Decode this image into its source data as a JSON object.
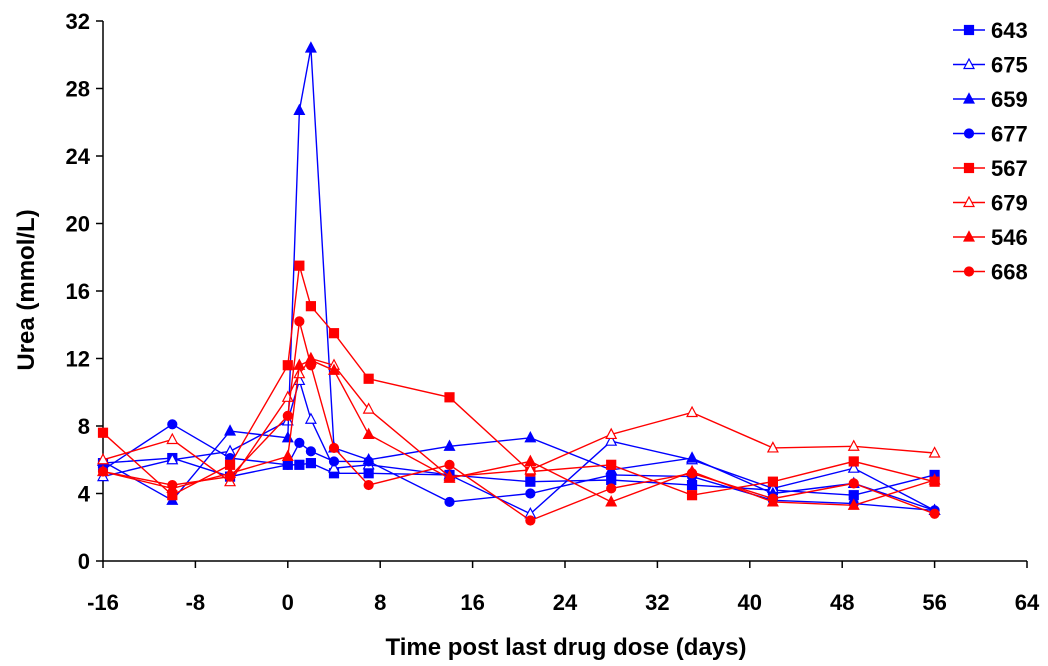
{
  "chart_data": {
    "type": "line",
    "title": "",
    "xlabel": "Time post last drug dose (days)",
    "ylabel": "Urea (mmol/L)",
    "xlim": [
      -16,
      64
    ],
    "ylim": [
      0,
      32
    ],
    "xticks": [
      -16,
      -8,
      0,
      8,
      16,
      24,
      32,
      40,
      48,
      56,
      64
    ],
    "yticks": [
      0,
      4,
      8,
      12,
      16,
      20,
      24,
      28,
      32
    ],
    "xtick_labels": [
      "-16",
      "-8",
      "0",
      "8",
      "16",
      "24",
      "32",
      "40",
      "48",
      "56",
      "64"
    ],
    "ytick_labels": [
      "0",
      "4",
      "8",
      "12",
      "16",
      "20",
      "24",
      "28",
      "32"
    ],
    "grid": false,
    "legend_position": "right",
    "series": [
      {
        "name": "643",
        "color": "#0000ff",
        "marker": "square",
        "filled": true,
        "x": [
          -16,
          -10,
          -5,
          0,
          1,
          2,
          4,
          7,
          14,
          21,
          28,
          35,
          42,
          49,
          56
        ],
        "y": [
          5.8,
          6.1,
          5.0,
          5.7,
          5.7,
          5.8,
          5.2,
          5.2,
          5.1,
          4.7,
          4.8,
          4.5,
          4.2,
          3.9,
          5.1
        ]
      },
      {
        "name": "675",
        "color": "#0000ff",
        "marker": "triangle",
        "filled": false,
        "x": [
          -16,
          -10,
          -5,
          0,
          1,
          2,
          4,
          7,
          14,
          21,
          28,
          35,
          42,
          49,
          56
        ],
        "y": [
          5.0,
          6.0,
          6.5,
          8.3,
          10.7,
          8.4,
          5.5,
          5.7,
          5.1,
          2.8,
          7.1,
          6.0,
          4.3,
          5.5,
          3.0
        ]
      },
      {
        "name": "659",
        "color": "#0000ff",
        "marker": "triangle",
        "filled": true,
        "x": [
          -16,
          -10,
          -5,
          0,
          1,
          2,
          4,
          7,
          14,
          21,
          28,
          35,
          42,
          49,
          56
        ],
        "y": [
          5.9,
          3.6,
          7.7,
          7.3,
          26.7,
          30.4,
          6.7,
          6.0,
          6.8,
          7.3,
          5.4,
          6.1,
          4.0,
          4.6,
          3.0
        ]
      },
      {
        "name": "677",
        "color": "#0000ff",
        "marker": "circle",
        "filled": true,
        "x": [
          -16,
          -10,
          -5,
          0,
          1,
          2,
          4,
          7,
          14,
          21,
          28,
          35,
          42,
          49,
          56
        ],
        "y": [
          5.4,
          8.1,
          6.1,
          5.7,
          7.0,
          6.5,
          5.9,
          5.9,
          3.5,
          4.0,
          5.1,
          5.0,
          3.6,
          3.4,
          3.0
        ]
      },
      {
        "name": "567",
        "color": "#ff0000",
        "marker": "square",
        "filled": true,
        "x": [
          -16,
          -10,
          -5,
          0,
          1,
          2,
          4,
          7,
          14,
          21,
          28,
          35,
          42,
          49,
          56
        ],
        "y": [
          7.6,
          3.9,
          5.7,
          11.6,
          17.5,
          15.1,
          13.5,
          10.8,
          9.7,
          5.3,
          5.7,
          3.9,
          4.7,
          5.9,
          4.7
        ]
      },
      {
        "name": "679",
        "color": "#ff0000",
        "marker": "triangle",
        "filled": false,
        "x": [
          -16,
          -10,
          -5,
          0,
          1,
          2,
          4,
          7,
          14,
          21,
          28,
          35,
          42,
          49,
          56
        ],
        "y": [
          6.0,
          7.2,
          4.7,
          9.7,
          11.1,
          12.0,
          11.6,
          9.0,
          5.0,
          5.4,
          7.5,
          8.8,
          6.7,
          6.8,
          6.4
        ]
      },
      {
        "name": "546",
        "color": "#ff0000",
        "marker": "triangle",
        "filled": true,
        "x": [
          -16,
          -10,
          -5,
          0,
          1,
          2,
          4,
          7,
          14,
          21,
          28,
          35,
          42,
          49,
          56
        ],
        "y": [
          5.3,
          4.3,
          5.2,
          6.2,
          11.6,
          11.9,
          11.3,
          7.5,
          4.9,
          5.9,
          3.5,
          5.3,
          3.5,
          3.3,
          4.8
        ]
      },
      {
        "name": "668",
        "color": "#ff0000",
        "marker": "circle",
        "filled": true,
        "x": [
          -16,
          -10,
          -5,
          0,
          1,
          2,
          4,
          7,
          14,
          21,
          28,
          35,
          42,
          49,
          56
        ],
        "y": [
          5.3,
          4.5,
          5.0,
          8.6,
          14.2,
          11.6,
          6.7,
          4.5,
          5.7,
          2.4,
          4.3,
          5.2,
          3.7,
          4.6,
          2.8
        ]
      }
    ]
  }
}
